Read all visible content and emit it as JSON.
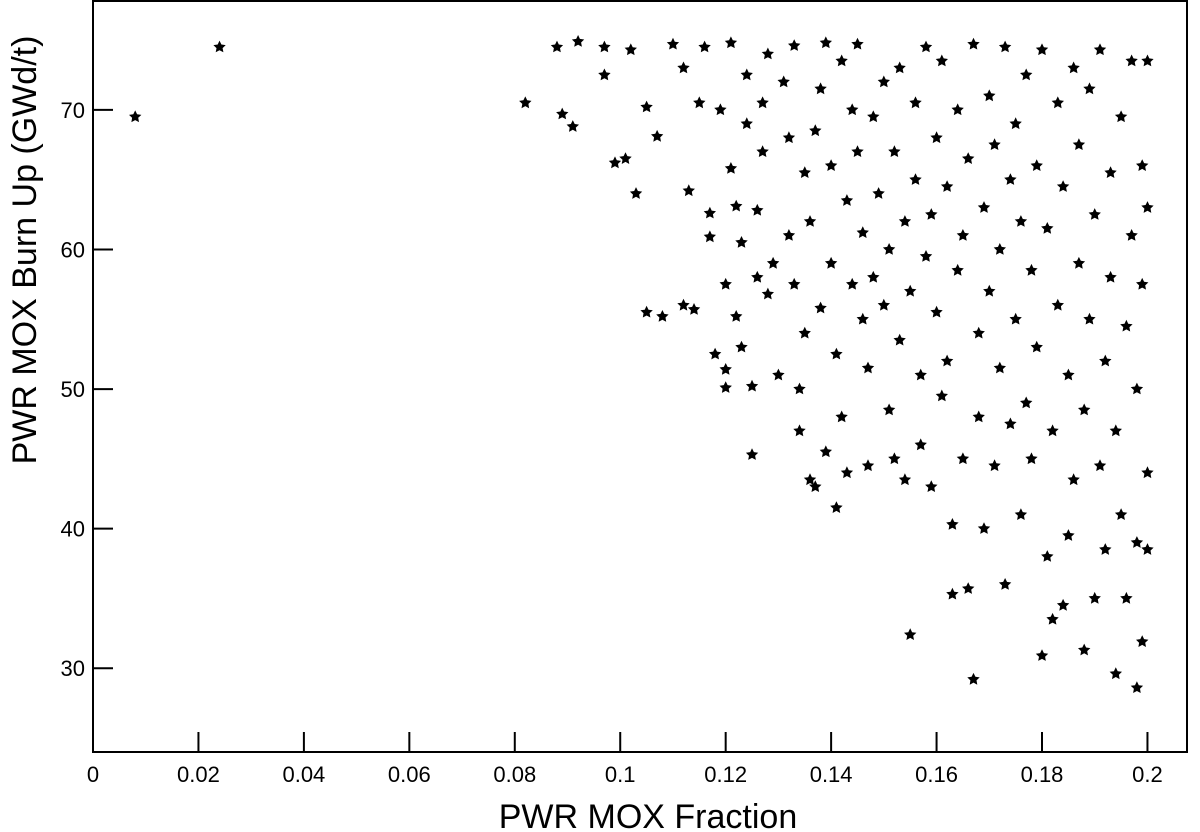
{
  "chart_data": {
    "type": "scatter",
    "x_label": "PWR MOX Fraction",
    "y_label": "PWR MOX Burn Up (GWd/t)",
    "color": "#000000",
    "xlim": [
      0,
      0.2075
    ],
    "ylim": [
      24,
      77.8
    ],
    "xticks": [
      0,
      0.02,
      0.04,
      0.06,
      0.08,
      0.1,
      0.12,
      0.14,
      0.16,
      0.18,
      0.2
    ],
    "yticks": [
      30,
      40,
      50,
      60,
      70
    ],
    "x": [
      0.008,
      0.024,
      0.082,
      0.088,
      0.089,
      0.091,
      0.092,
      0.097,
      0.097,
      0.099,
      0.101,
      0.102,
      0.103,
      0.105,
      0.105,
      0.107,
      0.108,
      0.11,
      0.112,
      0.113,
      0.112,
      0.114,
      0.115,
      0.116,
      0.117,
      0.117,
      0.118,
      0.119,
      0.12,
      0.12,
      0.12,
      0.121,
      0.121,
      0.122,
      0.122,
      0.123,
      0.123,
      0.124,
      0.124,
      0.125,
      0.125,
      0.126,
      0.126,
      0.127,
      0.127,
      0.128,
      0.128,
      0.129,
      0.13,
      0.131,
      0.132,
      0.132,
      0.133,
      0.133,
      0.134,
      0.134,
      0.135,
      0.135,
      0.136,
      0.136,
      0.137,
      0.137,
      0.138,
      0.138,
      0.139,
      0.139,
      0.14,
      0.14,
      0.141,
      0.141,
      0.142,
      0.142,
      0.143,
      0.143,
      0.144,
      0.144,
      0.145,
      0.145,
      0.146,
      0.146,
      0.147,
      0.147,
      0.148,
      0.148,
      0.149,
      0.15,
      0.15,
      0.151,
      0.151,
      0.152,
      0.152,
      0.153,
      0.153,
      0.154,
      0.154,
      0.155,
      0.155,
      0.156,
      0.156,
      0.157,
      0.157,
      0.158,
      0.158,
      0.159,
      0.159,
      0.16,
      0.16,
      0.161,
      0.161,
      0.162,
      0.162,
      0.163,
      0.163,
      0.164,
      0.164,
      0.165,
      0.165,
      0.166,
      0.166,
      0.167,
      0.167,
      0.168,
      0.168,
      0.169,
      0.169,
      0.17,
      0.17,
      0.171,
      0.171,
      0.172,
      0.172,
      0.173,
      0.173,
      0.174,
      0.174,
      0.175,
      0.175,
      0.176,
      0.176,
      0.177,
      0.177,
      0.178,
      0.178,
      0.179,
      0.179,
      0.18,
      0.18,
      0.181,
      0.181,
      0.182,
      0.182,
      0.183,
      0.183,
      0.184,
      0.184,
      0.185,
      0.185,
      0.186,
      0.186,
      0.187,
      0.187,
      0.188,
      0.188,
      0.189,
      0.189,
      0.19,
      0.19,
      0.191,
      0.191,
      0.192,
      0.192,
      0.193,
      0.193,
      0.194,
      0.194,
      0.195,
      0.195,
      0.196,
      0.196,
      0.197,
      0.197,
      0.198,
      0.198,
      0.198,
      0.199,
      0.199,
      0.199,
      0.2,
      0.2,
      0.2,
      0.2
    ],
    "values": [
      69.5,
      74.5,
      70.5,
      74.5,
      69.7,
      68.8,
      74.9,
      74.5,
      72.5,
      66.2,
      66.5,
      74.3,
      64.0,
      55.5,
      70.2,
      68.1,
      55.2,
      74.7,
      73.0,
      64.2,
      56.0,
      55.7,
      70.5,
      74.5,
      62.6,
      60.9,
      52.5,
      70.0,
      57.5,
      51.4,
      50.1,
      74.8,
      65.8,
      63.1,
      55.2,
      60.5,
      53.0,
      72.5,
      69.0,
      50.2,
      45.3,
      58.0,
      62.8,
      67.0,
      70.5,
      74.0,
      56.8,
      59.0,
      51.0,
      72.0,
      68.0,
      61.0,
      74.6,
      57.5,
      50.0,
      47.0,
      65.5,
      54.0,
      43.5,
      62.0,
      68.5,
      43.0,
      71.5,
      55.8,
      74.8,
      45.5,
      59.0,
      66.0,
      52.5,
      41.5,
      48.0,
      73.5,
      63.5,
      44.0,
      57.5,
      70.0,
      74.7,
      67.0,
      61.2,
      55.0,
      51.5,
      44.5,
      69.5,
      58.0,
      64.0,
      72.0,
      56.0,
      60.0,
      48.5,
      67.0,
      45.0,
      73.0,
      53.5,
      62.0,
      43.5,
      32.4,
      57.0,
      70.5,
      65.0,
      51.0,
      46.0,
      74.5,
      59.5,
      43.0,
      62.5,
      68.0,
      55.5,
      49.5,
      73.5,
      64.5,
      52.0,
      40.3,
      35.3,
      58.5,
      70.0,
      61.0,
      45.0,
      35.7,
      66.5,
      29.2,
      74.7,
      54.0,
      48.0,
      63.0,
      40.0,
      71.0,
      57.0,
      67.5,
      44.5,
      60.0,
      51.5,
      74.5,
      36.0,
      65.0,
      47.5,
      55.0,
      69.0,
      41.0,
      62.0,
      72.5,
      49.0,
      58.5,
      45.0,
      66.0,
      53.0,
      74.3,
      30.9,
      61.5,
      38.0,
      47.0,
      33.5,
      70.5,
      56.0,
      64.5,
      34.5,
      51.0,
      39.5,
      73.0,
      43.5,
      59.0,
      67.5,
      31.3,
      48.5,
      55.0,
      71.5,
      35.0,
      62.5,
      44.5,
      74.3,
      52.0,
      38.5,
      65.5,
      58.0,
      29.6,
      47.0,
      69.5,
      41.0,
      54.5,
      35.0,
      61.0,
      73.5,
      50.0,
      39.0,
      28.6,
      66.0,
      57.5,
      31.9,
      44.0,
      73.5,
      63.0,
      38.5
    ]
  }
}
